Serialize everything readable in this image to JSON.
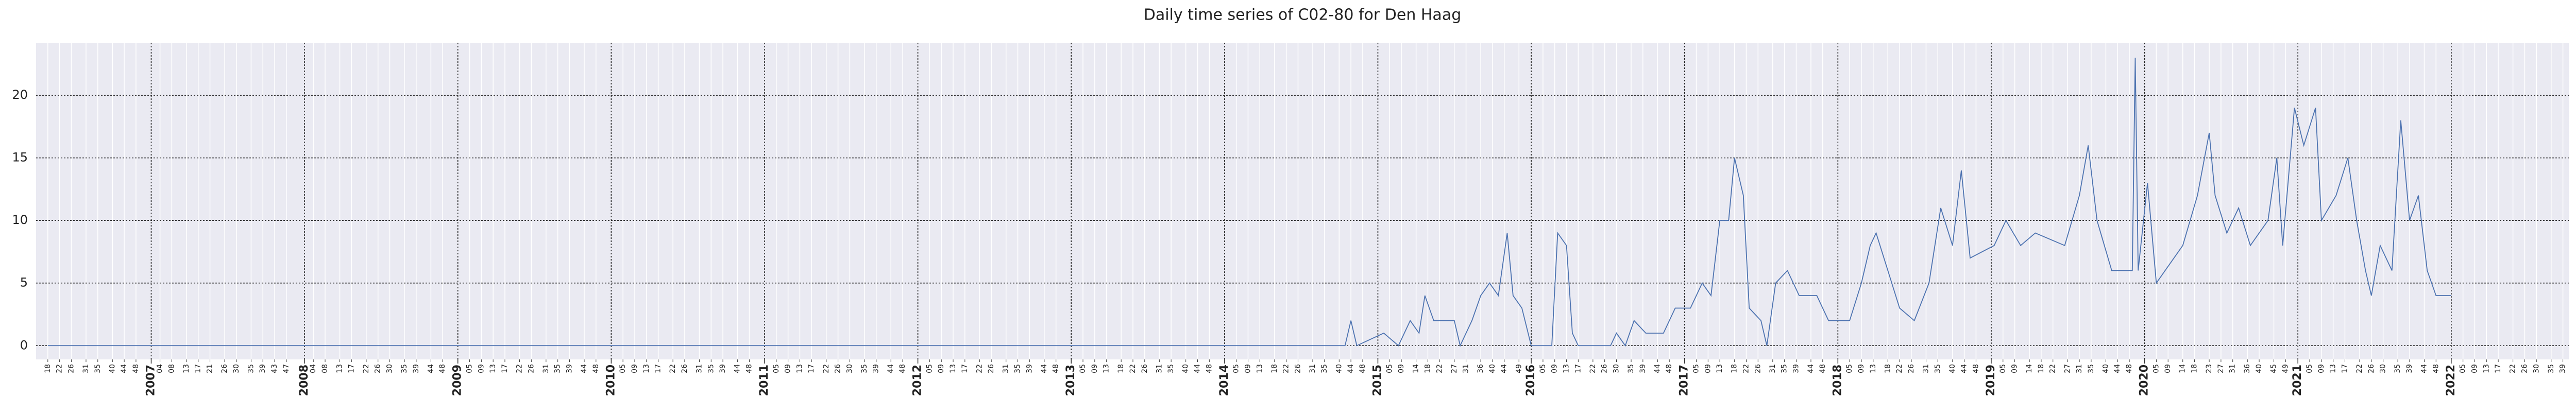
{
  "chart_data": {
    "type": "line",
    "title": "Daily time series of C02-80 for Den Haag",
    "xlim": [
      "2006-W14",
      "2022-W41"
    ],
    "ylim": [
      -1.1,
      24.2
    ],
    "yticks": [
      0,
      5,
      10,
      15,
      20
    ],
    "grid": true,
    "background": "#eaeaf2",
    "xticks_major": [
      {
        "value": "2007-W01",
        "label": "2007"
      },
      {
        "value": "2008-W01",
        "label": "2008"
      },
      {
        "value": "2009-W01",
        "label": "2009"
      },
      {
        "value": "2010-W01",
        "label": "2010"
      },
      {
        "value": "2011-W01",
        "label": "2011"
      },
      {
        "value": "2012-W01",
        "label": "2012"
      },
      {
        "value": "2013-W01",
        "label": "2013"
      },
      {
        "value": "2014-W01",
        "label": "2014"
      },
      {
        "value": "2015-W01",
        "label": "2015"
      },
      {
        "value": "2016-W01",
        "label": "2016"
      },
      {
        "value": "2017-W01",
        "label": "2017"
      },
      {
        "value": "2018-W01",
        "label": "2018"
      },
      {
        "value": "2019-W01",
        "label": "2019"
      },
      {
        "value": "2020-W01",
        "label": "2020"
      },
      {
        "value": "2021-W01",
        "label": "2021"
      },
      {
        "value": "2022-W01",
        "label": "2022"
      }
    ],
    "xticks": [
      {
        "value": "2006-W18",
        "label": "18"
      },
      {
        "value": "2006-W22",
        "label": "22"
      },
      {
        "value": "2006-W26",
        "label": "26"
      },
      {
        "value": "2006-W31",
        "label": "31"
      },
      {
        "value": "2006-W35",
        "label": "35"
      },
      {
        "value": "2006-W40",
        "label": "40"
      },
      {
        "value": "2006-W44",
        "label": "44"
      },
      {
        "value": "2006-W48",
        "label": "48"
      },
      {
        "value": "2007-W04",
        "label": "04"
      },
      {
        "value": "2007-W08",
        "label": "08"
      },
      {
        "value": "2007-W13",
        "label": "13"
      },
      {
        "value": "2007-W17",
        "label": "17"
      },
      {
        "value": "2007-W21",
        "label": "21"
      },
      {
        "value": "2007-W26",
        "label": "26"
      },
      {
        "value": "2007-W30",
        "label": "30"
      },
      {
        "value": "2007-W35",
        "label": "35"
      },
      {
        "value": "2007-W39",
        "label": "39"
      },
      {
        "value": "2007-W43",
        "label": "43"
      },
      {
        "value": "2007-W47",
        "label": "47"
      },
      {
        "value": "2008-W04",
        "label": "04"
      },
      {
        "value": "2008-W08",
        "label": "08"
      },
      {
        "value": "2008-W13",
        "label": "13"
      },
      {
        "value": "2008-W17",
        "label": "17"
      },
      {
        "value": "2008-W22",
        "label": "22"
      },
      {
        "value": "2008-W26",
        "label": "26"
      },
      {
        "value": "2008-W30",
        "label": "30"
      },
      {
        "value": "2008-W35",
        "label": "35"
      },
      {
        "value": "2008-W39",
        "label": "39"
      },
      {
        "value": "2008-W44",
        "label": "44"
      },
      {
        "value": "2008-W48",
        "label": "48"
      },
      {
        "value": "2009-W05",
        "label": "05"
      },
      {
        "value": "2009-W09",
        "label": "09"
      },
      {
        "value": "2009-W13",
        "label": "13"
      },
      {
        "value": "2009-W17",
        "label": "17"
      },
      {
        "value": "2009-W22",
        "label": "22"
      },
      {
        "value": "2009-W26",
        "label": "26"
      },
      {
        "value": "2009-W31",
        "label": "31"
      },
      {
        "value": "2009-W35",
        "label": "35"
      },
      {
        "value": "2009-W39",
        "label": "39"
      },
      {
        "value": "2009-W44",
        "label": "44"
      },
      {
        "value": "2009-W48",
        "label": "48"
      },
      {
        "value": "2010-W05",
        "label": "05"
      },
      {
        "value": "2010-W09",
        "label": "09"
      },
      {
        "value": "2010-W13",
        "label": "13"
      },
      {
        "value": "2010-W17",
        "label": "17"
      },
      {
        "value": "2010-W22",
        "label": "22"
      },
      {
        "value": "2010-W26",
        "label": "26"
      },
      {
        "value": "2010-W31",
        "label": "31"
      },
      {
        "value": "2010-W35",
        "label": "35"
      },
      {
        "value": "2010-W39",
        "label": "39"
      },
      {
        "value": "2010-W44",
        "label": "44"
      },
      {
        "value": "2010-W48",
        "label": "48"
      },
      {
        "value": "2011-W05",
        "label": "05"
      },
      {
        "value": "2011-W09",
        "label": "09"
      },
      {
        "value": "2011-W13",
        "label": "13"
      },
      {
        "value": "2011-W17",
        "label": "17"
      },
      {
        "value": "2011-W22",
        "label": "22"
      },
      {
        "value": "2011-W26",
        "label": "26"
      },
      {
        "value": "2011-W30",
        "label": "30"
      },
      {
        "value": "2011-W35",
        "label": "35"
      },
      {
        "value": "2011-W39",
        "label": "39"
      },
      {
        "value": "2011-W44",
        "label": "44"
      },
      {
        "value": "2011-W48",
        "label": "48"
      },
      {
        "value": "2012-W05",
        "label": "05"
      },
      {
        "value": "2012-W09",
        "label": "09"
      },
      {
        "value": "2012-W13",
        "label": "13"
      },
      {
        "value": "2012-W17",
        "label": "17"
      },
      {
        "value": "2012-W22",
        "label": "22"
      },
      {
        "value": "2012-W26",
        "label": "26"
      },
      {
        "value": "2012-W31",
        "label": "31"
      },
      {
        "value": "2012-W35",
        "label": "35"
      },
      {
        "value": "2012-W39",
        "label": "39"
      },
      {
        "value": "2012-W44",
        "label": "44"
      },
      {
        "value": "2012-W48",
        "label": "48"
      },
      {
        "value": "2013-W05",
        "label": "05"
      },
      {
        "value": "2013-W09",
        "label": "09"
      },
      {
        "value": "2013-W13",
        "label": "13"
      },
      {
        "value": "2013-W18",
        "label": "18"
      },
      {
        "value": "2013-W22",
        "label": "22"
      },
      {
        "value": "2013-W26",
        "label": "26"
      },
      {
        "value": "2013-W31",
        "label": "31"
      },
      {
        "value": "2013-W35",
        "label": "35"
      },
      {
        "value": "2013-W40",
        "label": "40"
      },
      {
        "value": "2013-W44",
        "label": "44"
      },
      {
        "value": "2013-W48",
        "label": "48"
      },
      {
        "value": "2014-W05",
        "label": "05"
      },
      {
        "value": "2014-W09",
        "label": "09"
      },
      {
        "value": "2014-W13",
        "label": "13"
      },
      {
        "value": "2014-W18",
        "label": "18"
      },
      {
        "value": "2014-W22",
        "label": "22"
      },
      {
        "value": "2014-W26",
        "label": "26"
      },
      {
        "value": "2014-W31",
        "label": "31"
      },
      {
        "value": "2014-W35",
        "label": "35"
      },
      {
        "value": "2014-W40",
        "label": "40"
      },
      {
        "value": "2014-W44",
        "label": "44"
      },
      {
        "value": "2014-W48",
        "label": "48"
      },
      {
        "value": "2015-W05",
        "label": "05"
      },
      {
        "value": "2015-W09",
        "label": "09"
      },
      {
        "value": "2015-W14",
        "label": "14"
      },
      {
        "value": "2015-W18",
        "label": "18"
      },
      {
        "value": "2015-W22",
        "label": "22"
      },
      {
        "value": "2015-W27",
        "label": "27"
      },
      {
        "value": "2015-W31",
        "label": "31"
      },
      {
        "value": "2015-W36",
        "label": "36"
      },
      {
        "value": "2015-W40",
        "label": "40"
      },
      {
        "value": "2015-W44",
        "label": "44"
      },
      {
        "value": "2015-W49",
        "label": "49"
      },
      {
        "value": "2016-W05",
        "label": "05"
      },
      {
        "value": "2016-W09",
        "label": "09"
      },
      {
        "value": "2016-W13",
        "label": "13"
      },
      {
        "value": "2016-W17",
        "label": "17"
      },
      {
        "value": "2016-W22",
        "label": "22"
      },
      {
        "value": "2016-W26",
        "label": "26"
      },
      {
        "value": "2016-W30",
        "label": "30"
      },
      {
        "value": "2016-W35",
        "label": "35"
      },
      {
        "value": "2016-W39",
        "label": "39"
      },
      {
        "value": "2016-W44",
        "label": "44"
      },
      {
        "value": "2016-W48",
        "label": "48"
      },
      {
        "value": "2017-W05",
        "label": "05"
      },
      {
        "value": "2017-W09",
        "label": "09"
      },
      {
        "value": "2017-W13",
        "label": "13"
      },
      {
        "value": "2017-W18",
        "label": "18"
      },
      {
        "value": "2017-W22",
        "label": "22"
      },
      {
        "value": "2017-W26",
        "label": "26"
      },
      {
        "value": "2017-W31",
        "label": "31"
      },
      {
        "value": "2017-W35",
        "label": "35"
      },
      {
        "value": "2017-W39",
        "label": "39"
      },
      {
        "value": "2017-W44",
        "label": "44"
      },
      {
        "value": "2017-W48",
        "label": "48"
      },
      {
        "value": "2018-W05",
        "label": "05"
      },
      {
        "value": "2018-W09",
        "label": "09"
      },
      {
        "value": "2018-W13",
        "label": "13"
      },
      {
        "value": "2018-W18",
        "label": "18"
      },
      {
        "value": "2018-W22",
        "label": "22"
      },
      {
        "value": "2018-W26",
        "label": "26"
      },
      {
        "value": "2018-W31",
        "label": "31"
      },
      {
        "value": "2018-W35",
        "label": "35"
      },
      {
        "value": "2018-W40",
        "label": "40"
      },
      {
        "value": "2018-W44",
        "label": "44"
      },
      {
        "value": "2018-W48",
        "label": "48"
      },
      {
        "value": "2019-W05",
        "label": "05"
      },
      {
        "value": "2019-W09",
        "label": "09"
      },
      {
        "value": "2019-W14",
        "label": "14"
      },
      {
        "value": "2019-W18",
        "label": "18"
      },
      {
        "value": "2019-W22",
        "label": "22"
      },
      {
        "value": "2019-W27",
        "label": "27"
      },
      {
        "value": "2019-W31",
        "label": "31"
      },
      {
        "value": "2019-W35",
        "label": "35"
      },
      {
        "value": "2019-W40",
        "label": "40"
      },
      {
        "value": "2019-W44",
        "label": "44"
      },
      {
        "value": "2019-W48",
        "label": "48"
      },
      {
        "value": "2020-W05",
        "label": "05"
      },
      {
        "value": "2020-W09",
        "label": "09"
      },
      {
        "value": "2020-W14",
        "label": "14"
      },
      {
        "value": "2020-W18",
        "label": "18"
      },
      {
        "value": "2020-W23",
        "label": "23"
      },
      {
        "value": "2020-W27",
        "label": "27"
      },
      {
        "value": "2020-W31",
        "label": "31"
      },
      {
        "value": "2020-W36",
        "label": "36"
      },
      {
        "value": "2020-W40",
        "label": "40"
      },
      {
        "value": "2020-W45",
        "label": "45"
      },
      {
        "value": "2020-W49",
        "label": "49"
      },
      {
        "value": "2021-W05",
        "label": "05"
      },
      {
        "value": "2021-W09",
        "label": "09"
      },
      {
        "value": "2021-W13",
        "label": "13"
      },
      {
        "value": "2021-W17",
        "label": "17"
      },
      {
        "value": "2021-W22",
        "label": "22"
      },
      {
        "value": "2021-W26",
        "label": "26"
      },
      {
        "value": "2021-W30",
        "label": "30"
      },
      {
        "value": "2021-W35",
        "label": "35"
      },
      {
        "value": "2021-W39",
        "label": "39"
      },
      {
        "value": "2021-W44",
        "label": "44"
      },
      {
        "value": "2021-W48",
        "label": "48"
      },
      {
        "value": "2022-W05",
        "label": "05"
      },
      {
        "value": "2022-W09",
        "label": "09"
      },
      {
        "value": "2022-W13",
        "label": "13"
      },
      {
        "value": "2022-W17",
        "label": "17"
      },
      {
        "value": "2022-W22",
        "label": "22"
      },
      {
        "value": "2022-W26",
        "label": "26"
      },
      {
        "value": "2022-W30",
        "label": "30"
      },
      {
        "value": "2022-W35",
        "label": "35"
      },
      {
        "value": "2022-W39",
        "label": "39"
      }
    ],
    "series": [
      {
        "color": "#4c72b0",
        "x": [
          "2006-W18",
          "2014-W42",
          "2014-W44",
          "2014-W46",
          "2015-W03",
          "2015-W08",
          "2015-W12",
          "2015-W15",
          "2015-W17",
          "2015-W20",
          "2015-W27",
          "2015-W29",
          "2015-W33",
          "2015-W36",
          "2015-W39",
          "2015-W42",
          "2015-W45",
          "2015-W47",
          "2015-W50",
          "2016-W01",
          "2016-W08",
          "2016-W10",
          "2016-W13",
          "2016-W15",
          "2016-W17",
          "2016-W28",
          "2016-W30",
          "2016-W33",
          "2016-W36",
          "2016-W40",
          "2016-W46",
          "2016-W50",
          "2017-W03",
          "2017-W07",
          "2017-W10",
          "2017-W13",
          "2017-W16",
          "2017-W18",
          "2017-W21",
          "2017-W23",
          "2017-W27",
          "2017-W29",
          "2017-W32",
          "2017-W36",
          "2017-W40",
          "2017-W46",
          "2017-W50",
          "2018-W05",
          "2018-W09",
          "2018-W12",
          "2018-W14",
          "2018-W18",
          "2018-W22",
          "2018-W27",
          "2018-W32",
          "2018-W36",
          "2018-W40",
          "2018-W43",
          "2018-W46",
          "2019-W02",
          "2019-W06",
          "2019-W11",
          "2019-W16",
          "2019-W26",
          "2019-W31",
          "2019-W34",
          "2019-W37",
          "2019-W42",
          "2019-W49",
          "2019-W50",
          "2019-W51",
          "2020-W02",
          "2020-W05",
          "2020-W08",
          "2020-W14",
          "2020-W19",
          "2020-W23",
          "2020-W25",
          "2020-W29",
          "2020-W33",
          "2020-W37",
          "2020-W43",
          "2020-W46",
          "2020-W48",
          "2020-W52",
          "2021-W03",
          "2021-W07",
          "2021-W09",
          "2021-W14",
          "2021-W18",
          "2021-W21",
          "2021-W24",
          "2021-W26",
          "2021-W29",
          "2021-W33",
          "2021-W36",
          "2021-W39",
          "2021-W42",
          "2021-W45",
          "2021-W48",
          "2022-W01"
        ],
        "values": [
          0,
          0,
          2,
          0,
          1,
          0,
          2,
          1,
          4,
          2,
          2,
          0,
          2,
          4,
          5,
          4,
          9,
          4,
          3,
          0,
          0,
          9,
          8,
          1,
          0,
          0,
          1,
          0,
          2,
          1,
          1,
          3,
          3,
          5,
          4,
          10,
          10,
          15,
          12,
          3,
          2,
          0,
          5,
          6,
          4,
          4,
          2,
          2,
          5,
          8,
          9,
          6,
          3,
          2,
          5,
          11,
          8,
          14,
          7,
          8,
          10,
          8,
          9,
          8,
          12,
          16,
          10,
          6,
          6,
          23,
          6,
          13,
          5,
          6,
          8,
          12,
          17,
          12,
          9,
          11,
          8,
          10,
          15,
          8,
          19,
          16,
          19,
          10,
          12,
          15,
          10,
          6,
          4,
          8,
          6,
          18,
          10,
          12,
          6,
          4,
          4
        ]
      }
    ]
  }
}
